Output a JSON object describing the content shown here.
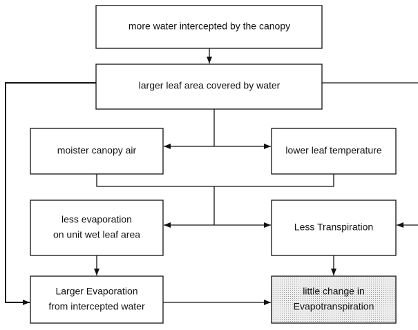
{
  "nodes": [
    {
      "lines": [
        "more water intercepted by the canopy"
      ]
    },
    {
      "lines": [
        "larger leaf area covered by water"
      ]
    },
    {
      "lines": [
        "moister canopy air"
      ]
    },
    {
      "lines": [
        "lower leaf temperature"
      ]
    },
    {
      "lines": [
        "less evaporation",
        "on unit wet leaf  area"
      ]
    },
    {
      "lines": [
        "Less Transpiration"
      ]
    },
    {
      "lines": [
        "Larger Evaporation",
        "from  intercepted water"
      ]
    },
    {
      "lines": [
        "little change in",
        "Evapotranspiration"
      ]
    }
  ]
}
